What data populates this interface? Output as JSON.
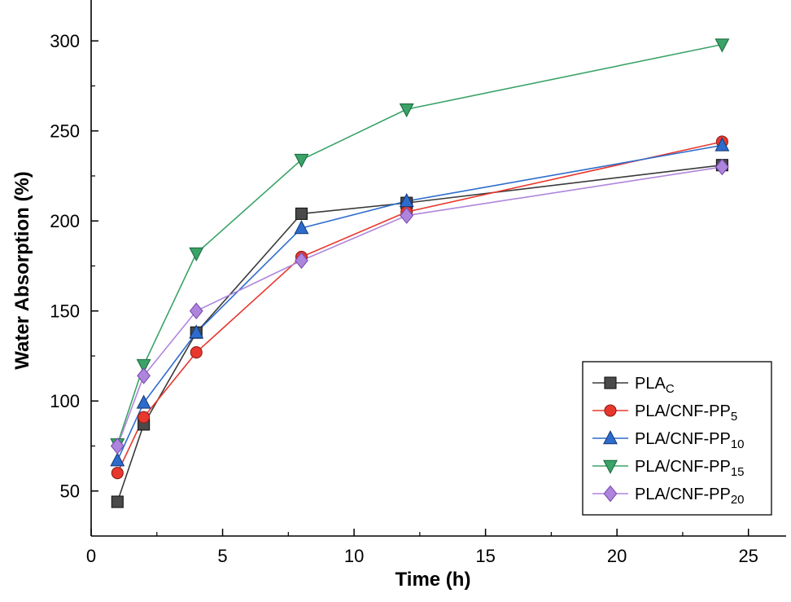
{
  "chart_data": {
    "type": "line",
    "title": "",
    "xlabel": "Time (h)",
    "ylabel": "Water Absorption (%)",
    "xlim": [
      0,
      26
    ],
    "ylim": [
      25,
      320
    ],
    "xticks": [
      0,
      5,
      10,
      15,
      20,
      25
    ],
    "yticks": [
      50,
      100,
      150,
      200,
      250,
      300
    ],
    "x_minor_ticks": [
      2.5,
      7.5,
      12.5,
      17.5,
      22.5
    ],
    "y_minor_ticks": [
      75,
      125,
      175,
      225,
      275
    ],
    "grid": false,
    "legend_position": "bottom-right",
    "x": [
      1,
      2,
      4,
      8,
      12,
      24
    ],
    "series": [
      {
        "id": "pla-c",
        "name": "PLA",
        "name_sub": "C",
        "marker": "square",
        "color": "#4a4a4a",
        "edge_color": "#141414",
        "line_color": "#3a3a3a",
        "values": [
          44,
          87,
          138,
          204,
          210,
          231
        ]
      },
      {
        "id": "pla-cnf-pp5",
        "name": "PLA/CNF-PP",
        "name_sub": "5",
        "marker": "circle",
        "color": "#e8382e",
        "edge_color": "#8f1d17",
        "line_color": "#e8382e",
        "values": [
          60,
          91,
          127,
          180,
          205,
          244
        ]
      },
      {
        "id": "pla-cnf-pp10",
        "name": "PLA/CNF-PP",
        "name_sub": "10",
        "marker": "triangle-up",
        "color": "#2d6ccc",
        "edge_color": "#163c7d",
        "line_color": "#2d6ccc",
        "values": [
          67,
          99,
          138,
          196,
          211,
          242
        ]
      },
      {
        "id": "pla-cnf-pp15",
        "name": "PLA/CNF-PP",
        "name_sub": "15",
        "marker": "triangle-down",
        "color": "#3ba368",
        "edge_color": "#1d6b3f",
        "line_color": "#3ba368",
        "values": [
          76,
          120,
          182,
          234,
          262,
          298
        ]
      },
      {
        "id": "pla-cnf-pp20",
        "name": "PLA/CNF-PP",
        "name_sub": "20",
        "marker": "diamond",
        "color": "#ae85dc",
        "edge_color": "#7a4cb2",
        "line_color": "#ae85dc",
        "values": [
          75,
          114,
          150,
          178,
          203,
          230
        ]
      }
    ]
  }
}
